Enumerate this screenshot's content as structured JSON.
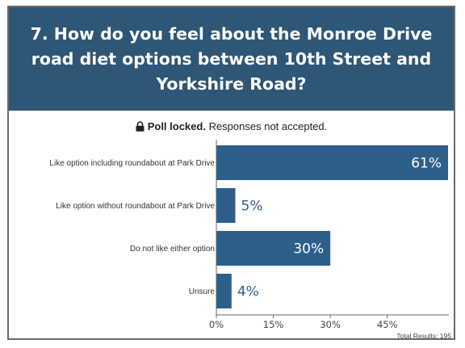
{
  "question": {
    "title": "7. How do you feel about the Monroe Drive road diet options between 10th Street and Yorkshire Road?"
  },
  "status": {
    "bold": "Poll locked.",
    "text": " Responses not accepted."
  },
  "colors": {
    "header": "#2e5677",
    "bar": "#2e5f8a",
    "label_inside": "#ffffff",
    "label_outside": "#2e5f8a"
  },
  "total_results": "Total Results: 195",
  "chart_data": {
    "type": "bar",
    "orientation": "horizontal",
    "categories": [
      "Like option including roundabout at Park Drive",
      "Like option without roundabout at Park Drive",
      "Do not like either option",
      "Unsure"
    ],
    "values": [
      61,
      5,
      30,
      4
    ],
    "value_labels": [
      "61%",
      "5%",
      "30%",
      "4%"
    ],
    "xticks": [
      "0%",
      "15%",
      "30%",
      "45%"
    ],
    "xtick_values": [
      0,
      15,
      30,
      45
    ],
    "xlim": [
      0,
      61
    ],
    "grid": false,
    "legend": "none"
  }
}
